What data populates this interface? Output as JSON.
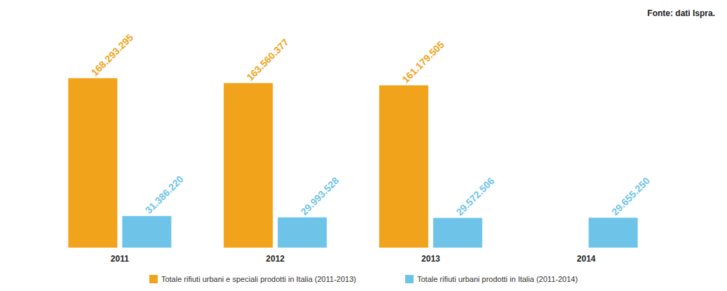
{
  "chart_data": {
    "type": "bar",
    "annotation": "Fonte: dati Ispra.",
    "categories": [
      "2011",
      "2012",
      "2013",
      "2014"
    ],
    "series": [
      {
        "name": "Totale rifiuti urbani e speciali prodotti in Italia (2011-2013)",
        "color": "#f0a31b",
        "values": [
          168293295,
          163560377,
          161179505,
          null
        ],
        "value_labels": [
          "168.293.295",
          "163.560.377",
          "161.179.505",
          null
        ]
      },
      {
        "name": "Totale rifiuti urbani prodotti in Italia (2011-2014)",
        "color": "#6ec4e8",
        "values": [
          31386220,
          29993528,
          29572506,
          29655250
        ],
        "value_labels": [
          "31.386.220",
          "29.993.528",
          "29.572.506",
          "29.655.250"
        ]
      }
    ],
    "data_labels": true,
    "legend": "bottom",
    "tick_labels": "x",
    "grid": false
  }
}
